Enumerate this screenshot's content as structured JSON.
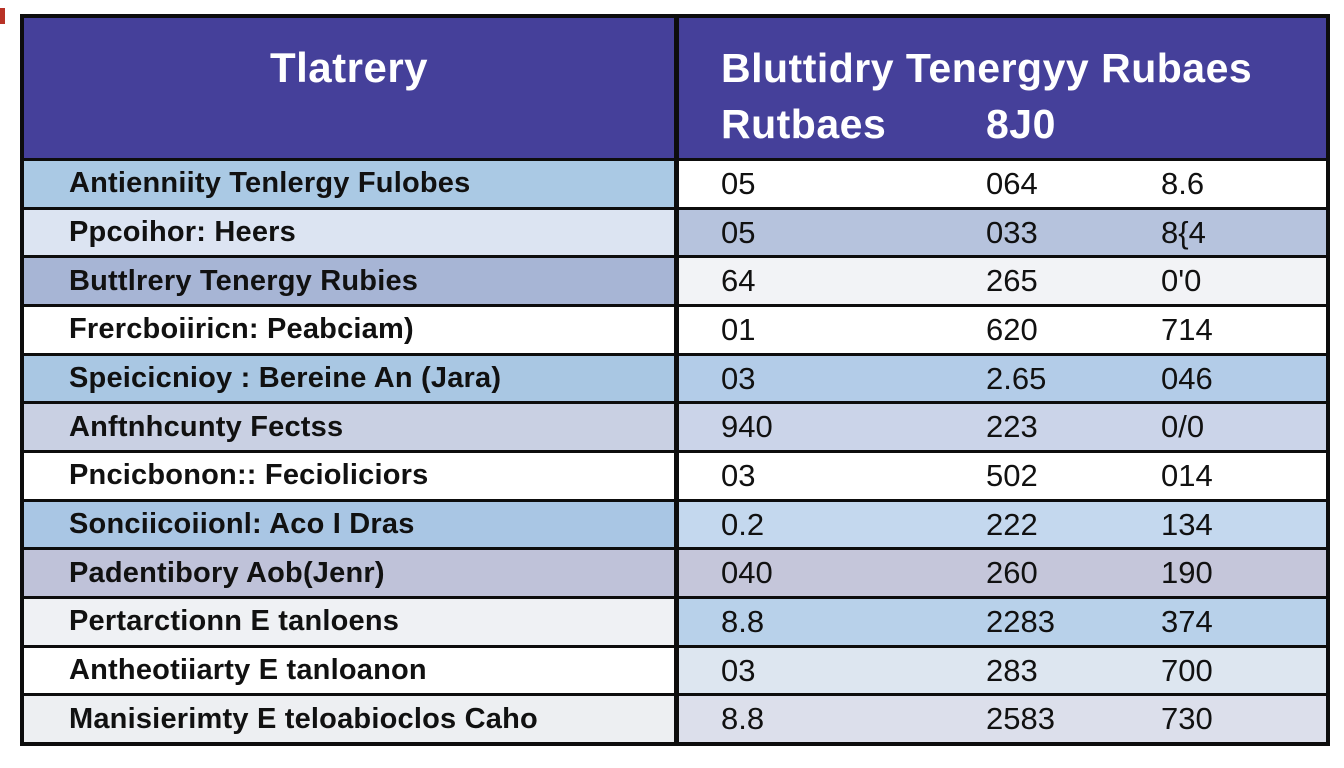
{
  "header": {
    "col1": "Tlatrery",
    "col2_line1": "Bluttidry Tenergyy Rubaes",
    "col2_line2a": "Rutbaes",
    "col2_line2b": "8J0"
  },
  "colors": {
    "header_bg": "#45409a",
    "header_text": "#ffffff",
    "border": "#0d0d0d",
    "band_blue": "#aac9e4",
    "band_lavender": "#c9d0e3",
    "band_gray": "#bfc2d9",
    "band_white": "#ffffff"
  },
  "chart_data": {
    "type": "table",
    "title": "Tlatrery",
    "header_row": [
      "Tlatrery",
      "Bluttidry Tenergyy Rubaes Rutbaes",
      "8J0"
    ],
    "rows": [
      {
        "label": "Antienniity Tenlergy Fulobes",
        "v1": "05",
        "v2": "064",
        "v3": "8.6"
      },
      {
        "label": "Ppcoihor: Heers",
        "v1": "05",
        "v2": "033",
        "v3": "8{4"
      },
      {
        "label": "Buttlrery Tenergy Rubies",
        "v1": "64",
        "v2": "265",
        "v3": "0'0"
      },
      {
        "label": "Frercboiiricn: Peabciam)",
        "v1": "01",
        "v2": "620",
        "v3": "714"
      },
      {
        "label": "Speicicnioy : Bereine An (Jara)",
        "v1": "03",
        "v2": "2.65",
        "v3": "046"
      },
      {
        "label": "Anftnhcunty Fectss",
        "v1": "940",
        "v2": "223",
        "v3": "0/0"
      },
      {
        "label": "Pncicbonon:: Fecioliciors",
        "v1": "03",
        "v2": "502",
        "v3": "014"
      },
      {
        "label": "Sonciicoiionl: Aco I Dras",
        "v1": "0.2",
        "v2": "222",
        "v3": "134"
      },
      {
        "label": "Padentibory Aob(Jenr)",
        "v1": "040",
        "v2": "260",
        "v3": "190"
      },
      {
        "label": "Pertarctionn E tanloens",
        "v1": "8.8",
        "v2": "2283",
        "v3": "374"
      },
      {
        "label": "Antheotiiarty E tanloanon",
        "v1": "03",
        "v2": "283",
        "v3": "700"
      },
      {
        "label": "Manisierimty E teloabioclos Caho",
        "v1": "8.8",
        "v2": "2583",
        "v3": "730"
      }
    ]
  }
}
